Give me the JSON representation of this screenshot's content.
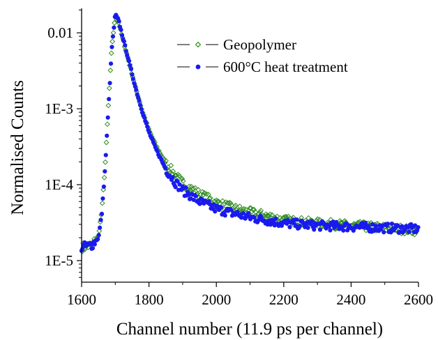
{
  "chart_data": {
    "type": "scatter",
    "title": "",
    "xlabel": "Channel number (11.9 ps per channel)",
    "ylabel": "Normalised Counts",
    "xlim": [
      1600,
      2600
    ],
    "ylim": [
      5.2e-06,
      0.021
    ],
    "yscale": "log",
    "x_ticks": [
      1600,
      1800,
      2000,
      2200,
      2400,
      2600
    ],
    "x_tick_labels": [
      "1600",
      "1800",
      "2000",
      "2200",
      "2400",
      "2600"
    ],
    "y_ticks": [
      1e-05,
      0.0001,
      0.001,
      0.01
    ],
    "y_tick_labels": [
      "1E-5",
      "1E-4",
      "1E-3",
      "0.01"
    ],
    "grid": false,
    "legend_position": "top-right",
    "series": [
      {
        "name": "Geopolymer",
        "marker": "open-diamond",
        "color": "#2e8b1e",
        "x": [
          1600,
          1630,
          1650,
          1660,
          1670,
          1680,
          1690,
          1700,
          1710,
          1720,
          1740,
          1760,
          1780,
          1800,
          1820,
          1850,
          1880,
          1900,
          1950,
          2000,
          2050,
          2100,
          2150,
          2200,
          2300,
          2400,
          2500,
          2600
        ],
        "y": [
          1.5e-05,
          1.6e-05,
          2.1e-05,
          4.5e-05,
          0.00018,
          0.0012,
          0.0068,
          0.0165,
          0.0135,
          0.009,
          0.0042,
          0.0019,
          0.00094,
          0.00052,
          0.00033,
          0.00019,
          0.00013,
          0.000105,
          7.5e-05,
          5.8e-05,
          4.9e-05,
          4.3e-05,
          3.9e-05,
          3.4e-05,
          3.1e-05,
          2.9e-05,
          2.7e-05,
          2.5e-05
        ]
      },
      {
        "name": "600°C heat treatment",
        "marker": "filled-circle",
        "color": "#1a1aee",
        "x": [
          1600,
          1630,
          1650,
          1660,
          1670,
          1680,
          1690,
          1700,
          1710,
          1720,
          1740,
          1760,
          1780,
          1800,
          1820,
          1850,
          1880,
          1900,
          1950,
          2000,
          2050,
          2100,
          2150,
          2200,
          2300,
          2400,
          2500,
          2600
        ],
        "y": [
          1.5e-05,
          1.6e-05,
          2e-05,
          4.2e-05,
          0.00017,
          0.0011,
          0.0065,
          0.0175,
          0.0145,
          0.0095,
          0.0043,
          0.0019,
          0.00092,
          0.00049,
          0.0003,
          0.00016,
          0.000105,
          8.5e-05,
          6e-05,
          4.8e-05,
          4.2e-05,
          3.7e-05,
          3.4e-05,
          3.1e-05,
          2.9e-05,
          2.8e-05,
          2.7e-05,
          2.6e-05
        ]
      }
    ]
  }
}
